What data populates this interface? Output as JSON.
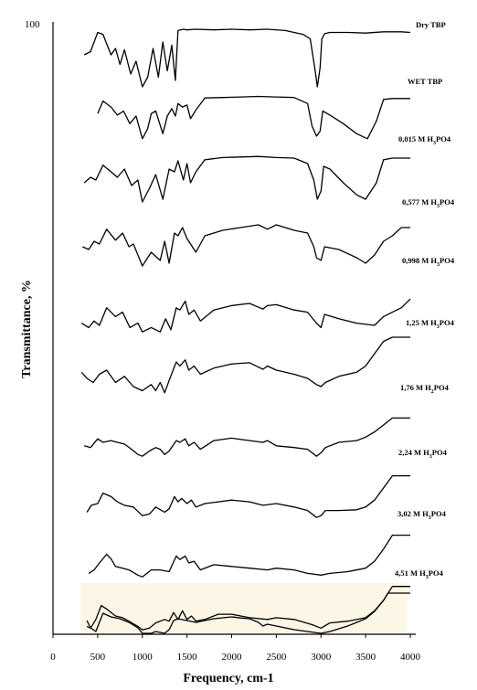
{
  "chart_data": {
    "type": "line",
    "xlabel": "Frequency, cm-1",
    "ylabel": "Transmittance, %",
    "y_top_label": "100",
    "xlim": [
      0,
      4000
    ],
    "xticks": [
      "0",
      "500",
      "1000",
      "1500",
      "2000",
      "2500",
      "3000",
      "3500",
      "4000"
    ],
    "grid": false,
    "highlight_color": "#fbf6e6",
    "series": [
      {
        "name": "Dry TBP",
        "name_prefix": "",
        "name_sub": "",
        "name_suffix": "",
        "x": [
          350,
          420,
          500,
          560,
          650,
          700,
          750,
          800,
          870,
          930,
          1000,
          1060,
          1120,
          1180,
          1230,
          1280,
          1330,
          1370,
          1400,
          1460,
          1500,
          1600,
          1800,
          2000,
          2200,
          2400,
          2600,
          2800,
          2880,
          2930,
          2960,
          2990,
          3010,
          3040,
          3100,
          3300,
          3500,
          3700,
          3900,
          4000
        ],
        "y": [
          0.6,
          0.65,
          0.95,
          0.92,
          0.6,
          0.7,
          0.45,
          0.68,
          0.3,
          0.5,
          0.1,
          0.25,
          0.7,
          0.25,
          0.8,
          0.35,
          0.75,
          0.2,
          0.98,
          1.0,
          0.99,
          1.0,
          0.99,
          1.0,
          0.99,
          1.0,
          0.98,
          0.92,
          0.85,
          0.4,
          0.1,
          0.4,
          0.85,
          0.93,
          0.95,
          0.95,
          0.94,
          0.96,
          0.96,
          0.95
        ]
      },
      {
        "name": "WET TBP",
        "name_prefix": "",
        "name_sub": "",
        "name_suffix": "",
        "x": [
          500,
          560,
          650,
          720,
          790,
          860,
          930,
          1000,
          1060,
          1100,
          1150,
          1230,
          1280,
          1330,
          1370,
          1400,
          1450,
          1500,
          1540,
          1600,
          1700,
          1900,
          2100,
          2300,
          2500,
          2700,
          2850,
          2900,
          2950,
          2990,
          3020,
          3100,
          3250,
          3400,
          3520,
          3620,
          3700,
          3800,
          4000
        ],
        "y": [
          0.65,
          0.9,
          0.78,
          0.62,
          0.7,
          0.45,
          0.6,
          0.15,
          0.35,
          0.65,
          0.7,
          0.25,
          0.6,
          0.75,
          0.6,
          0.85,
          0.78,
          0.82,
          0.55,
          0.72,
          0.96,
          0.97,
          0.98,
          0.99,
          0.98,
          0.97,
          0.85,
          0.4,
          0.2,
          0.3,
          0.7,
          0.62,
          0.45,
          0.25,
          0.15,
          0.5,
          0.93,
          0.95,
          0.95
        ]
      },
      {
        "name": "",
        "name_prefix": "0,015 M H",
        "name_sub": "3",
        "name_suffix": "PO4",
        "x": [
          350,
          420,
          480,
          560,
          650,
          720,
          800,
          880,
          950,
          1000,
          1080,
          1150,
          1230,
          1300,
          1360,
          1400,
          1460,
          1500,
          1540,
          1600,
          1700,
          1900,
          2100,
          2300,
          2500,
          2700,
          2850,
          2920,
          2960,
          3000,
          3030,
          3100,
          3250,
          3400,
          3500,
          3620,
          3700,
          3800,
          4000
        ],
        "y": [
          0.5,
          0.6,
          0.55,
          0.82,
          0.7,
          0.6,
          0.75,
          0.45,
          0.55,
          0.15,
          0.4,
          0.65,
          0.2,
          0.75,
          0.7,
          0.9,
          0.55,
          0.85,
          0.5,
          0.7,
          0.92,
          0.96,
          0.97,
          0.98,
          0.96,
          0.95,
          0.85,
          0.55,
          0.2,
          0.35,
          0.8,
          0.75,
          0.5,
          0.28,
          0.2,
          0.5,
          0.92,
          0.95,
          0.95
        ]
      },
      {
        "name": "",
        "name_prefix": "0,577 M H",
        "name_sub": "3",
        "name_suffix": "PO4",
        "x": [
          330,
          400,
          460,
          520,
          600,
          700,
          780,
          850,
          900,
          1000,
          1100,
          1200,
          1250,
          1300,
          1360,
          1400,
          1450,
          1500,
          1600,
          1700,
          1900,
          2100,
          2300,
          2400,
          2500,
          2700,
          2850,
          2920,
          2950,
          3000,
          3040,
          3200,
          3400,
          3500,
          3600,
          3700,
          3800,
          3900,
          4000
        ],
        "y": [
          0.5,
          0.45,
          0.6,
          0.55,
          0.82,
          0.62,
          0.75,
          0.5,
          0.55,
          0.15,
          0.4,
          0.25,
          0.6,
          0.2,
          0.75,
          0.7,
          0.85,
          0.65,
          0.4,
          0.7,
          0.8,
          0.85,
          0.9,
          0.82,
          0.9,
          0.8,
          0.75,
          0.5,
          0.3,
          0.25,
          0.5,
          0.45,
          0.3,
          0.2,
          0.35,
          0.6,
          0.7,
          0.85,
          0.85
        ]
      },
      {
        "name": "",
        "name_prefix": "0,998 M H",
        "name_sub": "3",
        "name_suffix": "PO4",
        "x": [
          320,
          400,
          460,
          520,
          600,
          700,
          780,
          860,
          950,
          1000,
          1100,
          1200,
          1260,
          1320,
          1380,
          1420,
          1480,
          1520,
          1580,
          1650,
          1800,
          2000,
          2200,
          2350,
          2400,
          2500,
          2700,
          2850,
          2950,
          3000,
          3040,
          3200,
          3400,
          3600,
          3700,
          3800,
          3900,
          4000
        ],
        "y": [
          0.3,
          0.2,
          0.35,
          0.25,
          0.65,
          0.45,
          0.55,
          0.2,
          0.3,
          0.1,
          0.2,
          0.1,
          0.4,
          0.15,
          0.65,
          0.6,
          0.8,
          0.5,
          0.6,
          0.35,
          0.6,
          0.7,
          0.75,
          0.62,
          0.7,
          0.72,
          0.6,
          0.55,
          0.3,
          0.2,
          0.5,
          0.4,
          0.3,
          0.25,
          0.45,
          0.55,
          0.65,
          0.85
        ]
      },
      {
        "name": "",
        "name_prefix": "1,25 M H",
        "name_sub": "3",
        "name_suffix": "PO4",
        "x": [
          320,
          380,
          450,
          520,
          600,
          700,
          800,
          900,
          1000,
          1100,
          1150,
          1200,
          1250,
          1300,
          1380,
          1420,
          1480,
          1520,
          1580,
          1650,
          1800,
          2000,
          2200,
          2350,
          2400,
          2500,
          2700,
          2850,
          2950,
          3000,
          3050,
          3200,
          3400,
          3500,
          3600,
          3700,
          3800,
          4000
        ],
        "y": [
          0.55,
          0.4,
          0.3,
          0.5,
          0.6,
          0.3,
          0.45,
          0.2,
          0.1,
          0.25,
          0.1,
          0.3,
          0.05,
          0.35,
          0.8,
          0.7,
          0.85,
          0.6,
          0.7,
          0.5,
          0.65,
          0.75,
          0.78,
          0.62,
          0.7,
          0.6,
          0.5,
          0.4,
          0.25,
          0.2,
          0.3,
          0.45,
          0.55,
          0.7,
          1.0,
          1.3,
          1.4,
          1.4
        ]
      },
      {
        "name": "",
        "name_prefix": "1,76 M H",
        "name_sub": "2",
        "name_suffix": "PO4",
        "x": [
          350,
          420,
          500,
          560,
          650,
          720,
          800,
          880,
          950,
          1000,
          1080,
          1150,
          1200,
          1250,
          1300,
          1380,
          1420,
          1480,
          1520,
          1580,
          1650,
          1800,
          2000,
          2200,
          2350,
          2400,
          2500,
          2700,
          2850,
          2950,
          3000,
          3050,
          3200,
          3400,
          3500,
          3600,
          3700,
          3800,
          4000
        ],
        "y": [
          0.4,
          0.35,
          0.6,
          0.5,
          0.55,
          0.5,
          0.45,
          0.3,
          0.15,
          0.1,
          0.25,
          0.35,
          0.3,
          0.15,
          0.25,
          0.55,
          0.5,
          0.6,
          0.4,
          0.5,
          0.3,
          0.55,
          0.62,
          0.55,
          0.5,
          0.55,
          0.4,
          0.35,
          0.3,
          0.1,
          0.2,
          0.35,
          0.5,
          0.55,
          0.65,
          0.8,
          1.0,
          1.2,
          1.2
        ]
      },
      {
        "name": "",
        "name_prefix": "2,24 M H",
        "name_sub": "3",
        "name_suffix": "PO4",
        "x": [
          380,
          430,
          500,
          560,
          650,
          720,
          800,
          900,
          1000,
          1080,
          1150,
          1250,
          1300,
          1360,
          1400,
          1440,
          1500,
          1550,
          1600,
          1700,
          1850,
          2000,
          2200,
          2350,
          2500,
          2700,
          2850,
          2950,
          3000,
          3050,
          3200,
          3400,
          3500,
          3600,
          3700,
          3800,
          4000
        ],
        "y": [
          0.25,
          0.45,
          0.5,
          0.8,
          0.7,
          0.55,
          0.45,
          0.4,
          0.15,
          0.2,
          0.4,
          0.25,
          0.35,
          0.7,
          0.55,
          0.65,
          0.5,
          0.6,
          0.4,
          0.5,
          0.55,
          0.6,
          0.55,
          0.45,
          0.5,
          0.4,
          0.3,
          0.1,
          0.15,
          0.3,
          0.3,
          0.32,
          0.4,
          0.6,
          0.95,
          1.3,
          1.3
        ]
      },
      {
        "name": "",
        "name_prefix": "3,02 M H",
        "name_sub": "3",
        "name_suffix": "PO4",
        "x": [
          400,
          460,
          520,
          600,
          650,
          700,
          780,
          850,
          950,
          1000,
          1100,
          1200,
          1300,
          1380,
          1420,
          1480,
          1520,
          1580,
          1650,
          1800,
          2000,
          2200,
          2400,
          2500,
          2700,
          2850,
          3000,
          3100,
          3300,
          3500,
          3600,
          3700,
          3800,
          4000
        ],
        "y": [
          0.2,
          0.3,
          0.5,
          0.75,
          0.62,
          0.4,
          0.35,
          0.3,
          0.15,
          0.1,
          0.3,
          0.3,
          0.25,
          0.7,
          0.6,
          0.7,
          0.5,
          0.55,
          0.3,
          0.45,
          0.4,
          0.35,
          0.3,
          0.35,
          0.3,
          0.2,
          0.15,
          0.2,
          0.25,
          0.35,
          0.55,
          0.9,
          1.3,
          1.3
        ]
      },
      {
        "name": "",
        "name_prefix": "4,51 M H",
        "name_sub": "3",
        "name_suffix": "PO4",
        "x": [
          380,
          420,
          480,
          540,
          600,
          700,
          780,
          850,
          950,
          1000,
          1080,
          1150,
          1250,
          1300,
          1350,
          1400,
          1450,
          1500,
          1550,
          1600,
          1700,
          1850,
          2000,
          2200,
          2400,
          2500,
          2700,
          2900,
          3000,
          3100,
          3300,
          3500,
          3600,
          3700,
          3800,
          4000
        ],
        "y": [
          0.2,
          0.15,
          0.4,
          0.8,
          0.7,
          0.5,
          0.45,
          0.35,
          0.2,
          0.1,
          0.15,
          0.3,
          0.4,
          0.35,
          0.6,
          0.4,
          0.65,
          0.4,
          0.5,
          0.35,
          0.4,
          0.55,
          0.55,
          0.45,
          0.4,
          0.45,
          0.4,
          0.25,
          0.15,
          0.3,
          0.35,
          0.45,
          0.65,
          0.95,
          1.35,
          1.35
        ]
      },
      {
        "name": "",
        "name_prefix": "",
        "name_sub": "",
        "name_suffix": "",
        "x": [
          380,
          420,
          480,
          560,
          650,
          750,
          850,
          950,
          1000,
          1100,
          1150,
          1250,
          1300,
          1350,
          1400,
          1500,
          1600,
          1800,
          2000,
          2100,
          2200,
          2300,
          2350,
          2400,
          2500,
          2700,
          2850,
          3000,
          3100,
          3300,
          3500,
          3600,
          3700,
          3750,
          3900,
          4000
        ],
        "y": [
          0.35,
          0.15,
          0.05,
          0.55,
          0.45,
          0.4,
          0.3,
          0.15,
          0.0,
          0.0,
          0.05,
          0.0,
          0.1,
          0.35,
          0.4,
          0.35,
          0.3,
          0.4,
          0.45,
          0.42,
          0.4,
          0.3,
          0.2,
          0.25,
          0.2,
          0.1,
          0.05,
          0.0,
          0.05,
          0.2,
          0.4,
          0.6,
          0.9,
          1.1,
          1.1,
          1.1
        ]
      }
    ]
  }
}
